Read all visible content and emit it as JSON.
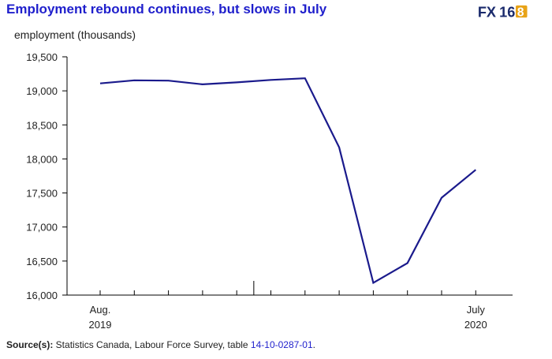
{
  "header": {
    "title": "Employment rebound continues, but slows in July",
    "logo_text": "FX168"
  },
  "chart_data": {
    "type": "line",
    "title": "Employment rebound continues, but slows in July",
    "ylabel": "employment (thousands)",
    "xlabel": "",
    "ylim": [
      16000,
      19500
    ],
    "y_ticks": [
      16000,
      16500,
      17000,
      17500,
      18000,
      18500,
      19000,
      19500
    ],
    "y_tick_labels": [
      "16,000",
      "16,500",
      "17,000",
      "17,500",
      "18,000",
      "18,500",
      "19,000",
      "19,500"
    ],
    "x": [
      "Aug. 2019",
      "Sep. 2019",
      "Oct. 2019",
      "Nov. 2019",
      "Dec. 2019",
      "Jan. 2020",
      "Feb. 2020",
      "Mar. 2020",
      "Apr. 2020",
      "May 2020",
      "June 2020",
      "July 2020"
    ],
    "x_tick_labels": [
      {
        "index": 0,
        "line1": "Aug.",
        "line2": "2019"
      },
      {
        "index": 11,
        "line1": "July",
        "line2": "2020"
      }
    ],
    "year_separator_after_index": 4,
    "series": [
      {
        "color": "#1a1a8c",
        "values": [
          19110,
          19155,
          19150,
          19095,
          19125,
          19160,
          19185,
          18170,
          16180,
          16470,
          17430,
          17840
        ]
      }
    ],
    "grid": false
  },
  "source": {
    "label": "Source(s):",
    "text": " Statistics Canada, Labour Force Survey, table ",
    "table_id": "14-10-0287-01",
    "end": "."
  },
  "colors": {
    "title": "#1f1fcc",
    "line": "#1a1a8c",
    "axis": "#000000",
    "logo_fx": "#1a2a6c",
    "logo_num": "#e8a317"
  }
}
